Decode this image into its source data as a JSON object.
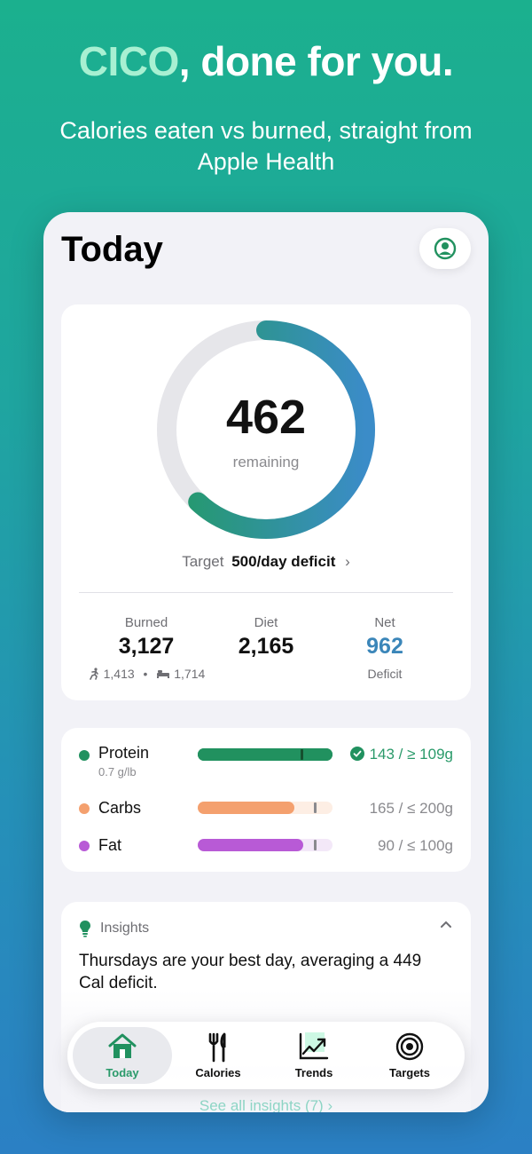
{
  "hero": {
    "headline_accent": "CICO",
    "headline_rest": ", done for you.",
    "subheadline": "Calories eaten vs burned, straight from Apple Health"
  },
  "header": {
    "title": "Today",
    "profile_icon": "person-circle-icon"
  },
  "summary": {
    "remaining_value": "462",
    "remaining_label": "remaining",
    "ring_progress_fraction": 0.62,
    "target_label": "Target",
    "target_value": "500/day deficit",
    "burned_label": "Burned",
    "burned_value": "3,127",
    "burned_active": "1,413",
    "burned_resting": "1,714",
    "diet_label": "Diet",
    "diet_value": "2,165",
    "net_label": "Net",
    "net_value": "962",
    "net_sub": "Deficit"
  },
  "macros": [
    {
      "name": "Protein",
      "sub": "0.7 g/lb",
      "value": "143 / ≥ 109g",
      "fill": 1.0,
      "target": 0.76,
      "color": "#21915f",
      "track": "#21915f",
      "met": true
    },
    {
      "name": "Carbs",
      "sub": "",
      "value": "165 / ≤ 200g",
      "fill": 0.72,
      "target": 0.86,
      "color": "#f4a06e",
      "track": "#fdeee4",
      "met": false
    },
    {
      "name": "Fat",
      "sub": "",
      "value": "90 / ≤ 100g",
      "fill": 0.78,
      "target": 0.86,
      "color": "#b85ad6",
      "track": "#f3e8f8",
      "met": false
    }
  ],
  "insights": {
    "heading": "Insights",
    "text": "Thursdays are your best day, averaging a 449 Cal deficit.",
    "link": "See all insights (7) ›"
  },
  "tabs": [
    {
      "label": "Today",
      "icon": "house-icon",
      "active": true
    },
    {
      "label": "Calories",
      "icon": "fork-knife-icon",
      "active": false
    },
    {
      "label": "Trends",
      "icon": "chart-line-icon",
      "active": false
    },
    {
      "label": "Targets",
      "icon": "target-icon",
      "active": false
    }
  ],
  "colors": {
    "accent_green": "#21915f",
    "net_blue": "#3b86b9",
    "ring_track": "#e6e6ea"
  }
}
